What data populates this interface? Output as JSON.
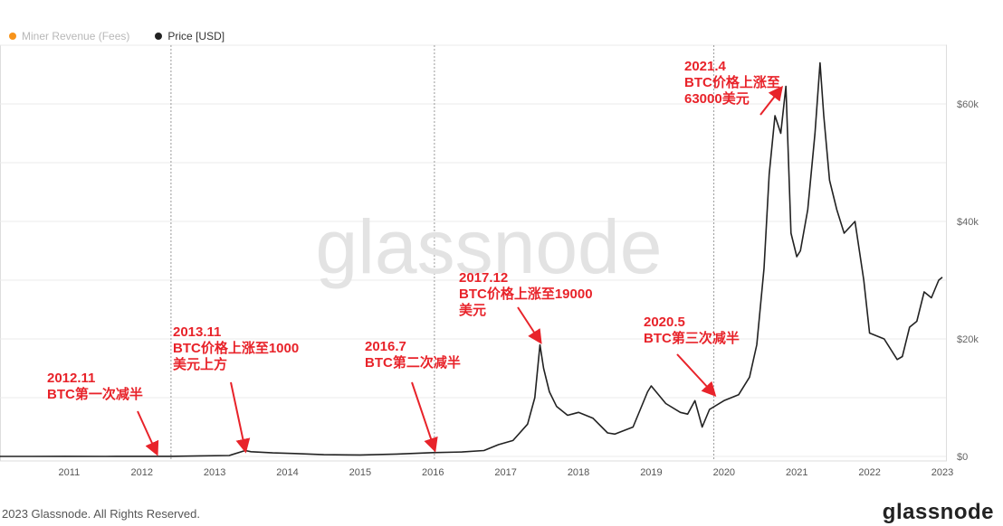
{
  "legend": [
    {
      "label": "Miner Revenue (Fees)",
      "color": "#f7931a",
      "active": false
    },
    {
      "label": "Price [USD]",
      "color": "#222222",
      "active": true
    }
  ],
  "watermark": "glassnode",
  "footer": {
    "copyright": "2023 Glassnode. All Rights Reserved.",
    "brand": "glassnode"
  },
  "chart_data": {
    "type": "line",
    "xlabel": "",
    "ylabel": "",
    "grid": true,
    "y_scale": "linear",
    "xlim": [
      2010.55,
      2023.55
    ],
    "ylim": [
      0,
      70000
    ],
    "x_ticks": [
      "2011",
      "2012",
      "2013",
      "2014",
      "2015",
      "2016",
      "2017",
      "2018",
      "2019",
      "2020",
      "2021",
      "2022",
      "2023"
    ],
    "y_ticks": [
      {
        "value": 0,
        "label": "$0"
      },
      {
        "value": 20000,
        "label": "$20k"
      },
      {
        "value": 40000,
        "label": "$40k"
      },
      {
        "value": 60000,
        "label": "$60k"
      }
    ],
    "halving_lines": [
      2012.9,
      2016.52,
      2020.36
    ],
    "series": [
      {
        "name": "Price [USD]",
        "color": "#222222",
        "x": [
          2010.55,
          2011.0,
          2011.45,
          2012.0,
          2012.5,
          2012.9,
          2013.3,
          2013.7,
          2013.92,
          2014.0,
          2014.3,
          2014.6,
          2015.0,
          2015.5,
          2016.0,
          2016.5,
          2016.9,
          2017.2,
          2017.4,
          2017.6,
          2017.8,
          2017.9,
          2017.97,
          2018.02,
          2018.1,
          2018.2,
          2018.35,
          2018.5,
          2018.7,
          2018.9,
          2019.0,
          2019.25,
          2019.45,
          2019.5,
          2019.7,
          2019.9,
          2020.0,
          2020.1,
          2020.2,
          2020.3,
          2020.5,
          2020.7,
          2020.85,
          2020.95,
          2021.05,
          2021.12,
          2021.2,
          2021.28,
          2021.35,
          2021.42,
          2021.5,
          2021.55,
          2021.65,
          2021.75,
          2021.82,
          2021.87,
          2021.95,
          2022.05,
          2022.15,
          2022.3,
          2022.42,
          2022.5,
          2022.7,
          2022.88,
          2022.95,
          2023.05,
          2023.15,
          2023.25,
          2023.35,
          2023.45,
          2023.5
        ],
        "y": [
          0,
          1,
          10,
          5,
          8,
          12,
          100,
          150,
          1000,
          800,
          600,
          500,
          300,
          250,
          400,
          650,
          750,
          1000,
          2000,
          2700,
          5500,
          10000,
          19000,
          15000,
          11000,
          8500,
          7000,
          7500,
          6500,
          4000,
          3800,
          5000,
          11000,
          12000,
          9000,
          7500,
          7200,
          9500,
          5000,
          8000,
          9500,
          10500,
          13500,
          19000,
          32000,
          48000,
          58000,
          55000,
          63000,
          38000,
          34000,
          35000,
          42000,
          55000,
          67000,
          58000,
          47000,
          42000,
          38000,
          40000,
          30000,
          21000,
          20000,
          16500,
          17000,
          22000,
          23000,
          28000,
          27000,
          30000,
          30500
        ]
      }
    ],
    "annotations": [
      {
        "lines": [
          "2012.11",
          "BTC第一次减半"
        ],
        "target": [
          2012.7,
          0
        ]
      },
      {
        "lines": [
          "2013.11",
          "BTC价格上涨至1000",
          "美元上方"
        ],
        "target": [
          2013.92,
          500
        ]
      },
      {
        "lines": [
          "2016.7",
          "BTC第二次减半"
        ],
        "target": [
          2016.52,
          650
        ]
      },
      {
        "lines": [
          "2017.12",
          "BTC价格上涨至19000",
          "美元"
        ],
        "target": [
          2017.97,
          19000
        ]
      },
      {
        "lines": [
          "2020.5",
          "BTC第三次减半"
        ],
        "target": [
          2020.36,
          10000
        ]
      },
      {
        "lines": [
          "2021.4",
          "BTC价格上涨至",
          "63000美元"
        ],
        "target": [
          2021.28,
          62000
        ]
      }
    ]
  }
}
